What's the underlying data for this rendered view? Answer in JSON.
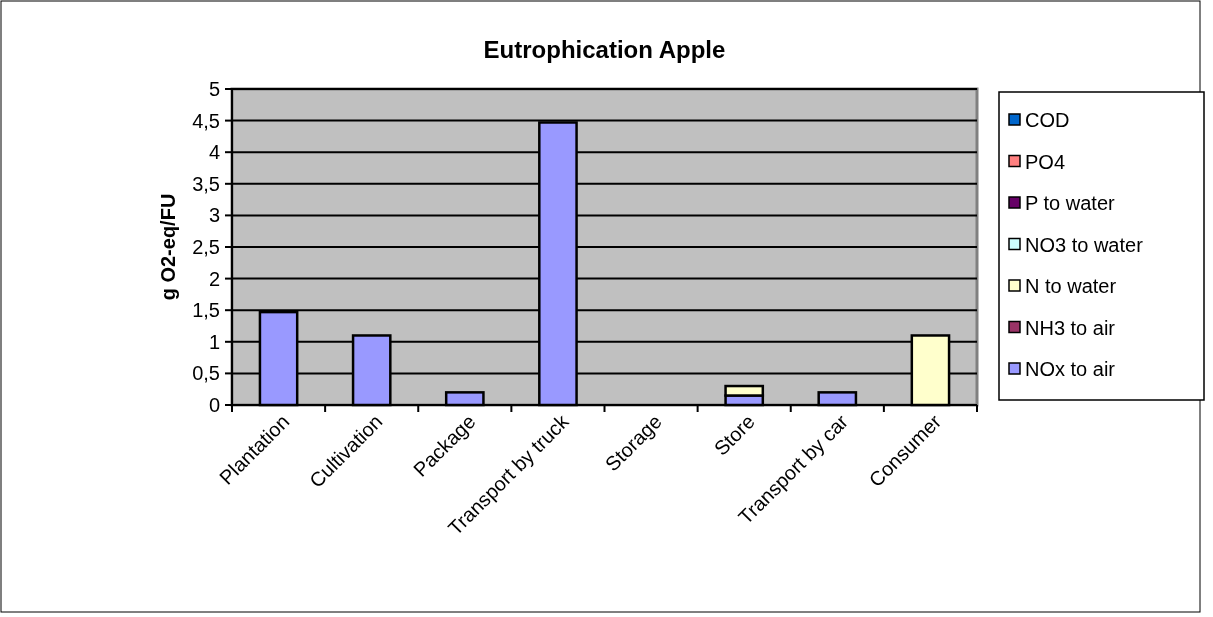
{
  "chart_data": {
    "type": "bar",
    "title": "Eutrophication Apple",
    "ylabel": "g O2-eq/FU",
    "categories": [
      "Plantation",
      "Cultivation",
      "Package",
      "Transport by truck",
      "Storage",
      "Store",
      "Transport by car",
      "Consumer"
    ],
    "stacked": true,
    "series": [
      {
        "name": "NOx to air",
        "color": "#9999ff",
        "values": [
          1.47,
          1.1,
          0.2,
          4.47,
          0,
          0.15,
          0.2,
          0
        ]
      },
      {
        "name": "NH3 to air",
        "color": "#993366",
        "values": [
          0,
          0,
          0,
          0,
          0,
          0,
          0,
          0
        ]
      },
      {
        "name": "N to water",
        "color": "#ffffcc",
        "values": [
          0,
          0,
          0,
          0,
          0,
          0.15,
          0,
          1.1
        ]
      },
      {
        "name": "NO3 to water",
        "color": "#ccffff",
        "values": [
          0,
          0,
          0,
          0,
          0,
          0,
          0,
          0
        ]
      },
      {
        "name": "P to water",
        "color": "#660066",
        "values": [
          0,
          0,
          0,
          0,
          0,
          0,
          0,
          0
        ]
      },
      {
        "name": "PO4",
        "color": "#ff8080",
        "values": [
          0,
          0,
          0,
          0,
          0,
          0,
          0,
          0
        ]
      },
      {
        "name": "COD",
        "color": "#0066cc",
        "values": [
          0,
          0,
          0,
          0,
          0,
          0,
          0,
          0
        ]
      }
    ],
    "ylim": [
      0,
      5
    ],
    "yticks": [
      0,
      {
        "value": 0.5,
        "label": "0,5"
      },
      1,
      {
        "value": 1.5,
        "label": "1,5"
      },
      2,
      {
        "value": 2.5,
        "label": "2,5"
      },
      3,
      {
        "value": 3.5,
        "label": "3,5"
      },
      4,
      {
        "value": 4.5,
        "label": "4,5"
      },
      5
    ],
    "grid": "y",
    "legend": "right"
  }
}
